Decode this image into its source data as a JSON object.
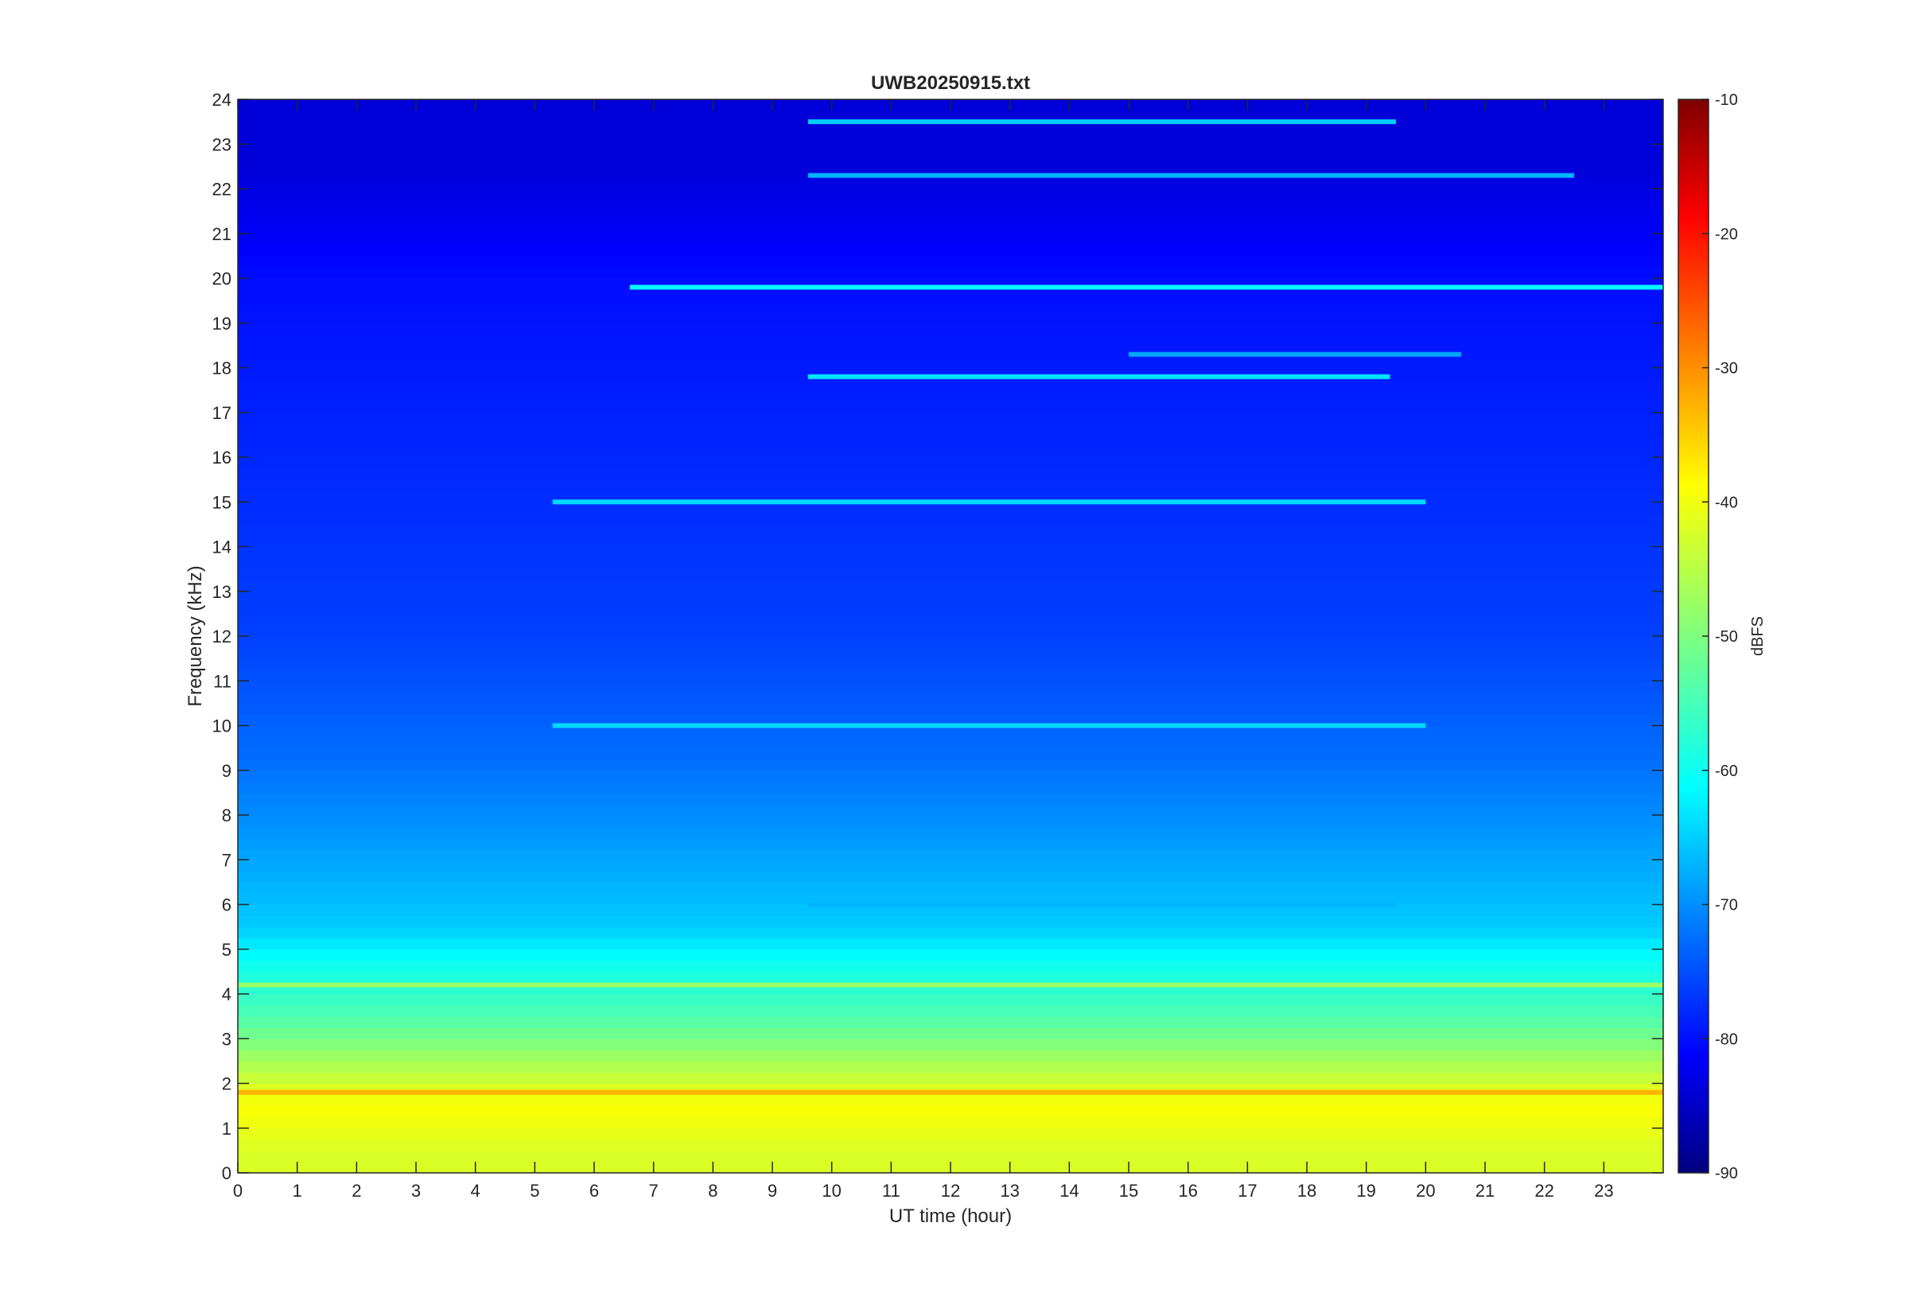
{
  "chart_data": {
    "type": "heatmap",
    "title": "UWB20250915.txt",
    "xlabel": "UT time (hour)",
    "ylabel": "Frequency (kHz)",
    "xlim": [
      0,
      24
    ],
    "ylim": [
      0,
      24
    ],
    "x_ticks": [
      0,
      1,
      2,
      3,
      4,
      5,
      6,
      7,
      8,
      9,
      10,
      11,
      12,
      13,
      14,
      15,
      16,
      17,
      18,
      19,
      20,
      21,
      22,
      23
    ],
    "y_ticks": [
      0,
      1,
      2,
      3,
      4,
      5,
      6,
      7,
      8,
      9,
      10,
      11,
      12,
      13,
      14,
      15,
      16,
      17,
      18,
      19,
      20,
      21,
      22,
      23,
      24
    ],
    "colorbar": {
      "label": "dBFS",
      "clim": [
        -90,
        -10
      ],
      "ticks": [
        -90,
        -80,
        -70,
        -60,
        -50,
        -40,
        -30,
        -20,
        -10
      ],
      "colormap": "jet"
    },
    "approx_levels_by_frequency_khz": [
      {
        "f": 0.5,
        "dbfs": -43
      },
      {
        "f": 1.5,
        "dbfs": -40
      },
      {
        "f": 2.5,
        "dbfs": -47
      },
      {
        "f": 3.5,
        "dbfs": -54
      },
      {
        "f": 4.5,
        "dbfs": -58
      },
      {
        "f": 5.5,
        "dbfs": -64
      },
      {
        "f": 7,
        "dbfs": -67
      },
      {
        "f": 9,
        "dbfs": -71
      },
      {
        "f": 12,
        "dbfs": -75
      },
      {
        "f": 16,
        "dbfs": -77
      },
      {
        "f": 20,
        "dbfs": -79
      },
      {
        "f": 22.5,
        "dbfs": -83
      }
    ],
    "tonal_lines": [
      {
        "freq_khz": 19.8,
        "start_hour": 6.6,
        "end_hour": 24,
        "dbfs": -60
      },
      {
        "freq_khz": 17.8,
        "start_hour": 9.6,
        "end_hour": 19.4,
        "dbfs": -62
      },
      {
        "freq_khz": 22.3,
        "start_hour": 9.6,
        "end_hour": 22.5,
        "dbfs": -66
      },
      {
        "freq_khz": 23.5,
        "start_hour": 9.6,
        "end_hour": 19.5,
        "dbfs": -64
      },
      {
        "freq_khz": 18.3,
        "start_hour": 15,
        "end_hour": 20.6,
        "dbfs": -67
      },
      {
        "freq_khz": 15.0,
        "start_hour": 5.3,
        "end_hour": 20.0,
        "dbfs": -63
      },
      {
        "freq_khz": 10.0,
        "start_hour": 5.3,
        "end_hour": 20.0,
        "dbfs": -63
      },
      {
        "freq_khz": 6.0,
        "start_hour": 9.6,
        "end_hour": 19.5,
        "dbfs": -66
      },
      {
        "freq_khz": 4.2,
        "start_hour": 0,
        "end_hour": 24,
        "dbfs": -48
      },
      {
        "freq_khz": 1.8,
        "start_hour": 0,
        "end_hour": 24,
        "dbfs": -34
      }
    ]
  }
}
